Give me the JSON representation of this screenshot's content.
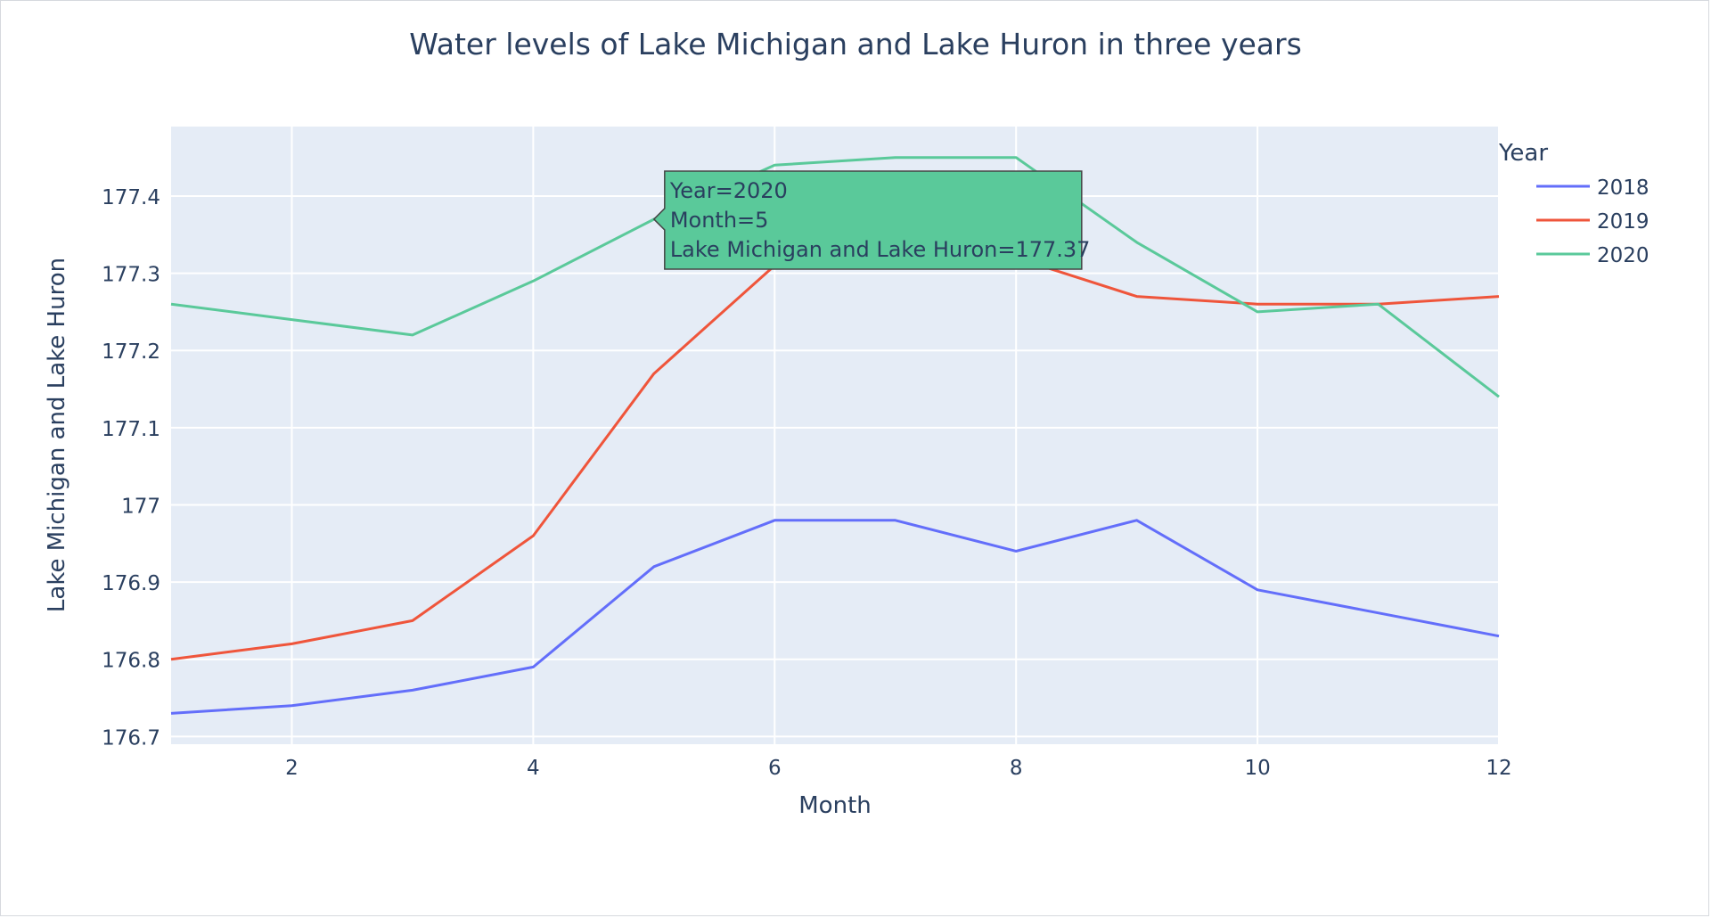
{
  "chart_data": {
    "type": "line",
    "title": "Water levels of Lake Michigan and Lake Huron in three years",
    "xlabel": "Month",
    "ylabel": "Lake Michigan and Lake Huron",
    "xlim": [
      1,
      12
    ],
    "ylim": [
      176.69,
      177.49
    ],
    "x_ticks": [
      2,
      4,
      6,
      8,
      10,
      12
    ],
    "y_ticks": [
      176.7,
      176.8,
      176.9,
      177,
      177.1,
      177.2,
      177.3,
      177.4
    ],
    "y_tick_labels": [
      "176.7",
      "176.8",
      "176.9",
      "177",
      "177.1",
      "177.2",
      "177.3",
      "177.4"
    ],
    "grid": true,
    "legend_title": "Year",
    "legend_position": "right",
    "x": [
      1,
      2,
      3,
      4,
      5,
      6,
      7,
      8,
      9,
      10,
      11,
      12
    ],
    "series": [
      {
        "name": "2018",
        "color": "#636efa",
        "values": [
          176.73,
          176.74,
          176.76,
          176.79,
          176.92,
          176.98,
          176.98,
          176.94,
          176.98,
          176.89,
          176.86,
          176.83
        ]
      },
      {
        "name": "2019",
        "color": "#ef553b",
        "values": [
          176.8,
          176.82,
          176.85,
          176.96,
          177.17,
          177.31,
          177.36,
          177.32,
          177.27,
          177.26,
          177.26,
          177.27
        ]
      },
      {
        "name": "2020",
        "color": "#5ac99a",
        "values": [
          177.26,
          177.24,
          177.22,
          177.29,
          177.37,
          177.44,
          177.45,
          177.45,
          177.34,
          177.25,
          177.26,
          177.14
        ]
      }
    ],
    "tooltip": {
      "series_index": 2,
      "point_index": 4,
      "lines": [
        "Year=2020",
        "Month=5",
        "Lake Michigan and Lake Huron=177.37"
      ]
    }
  }
}
